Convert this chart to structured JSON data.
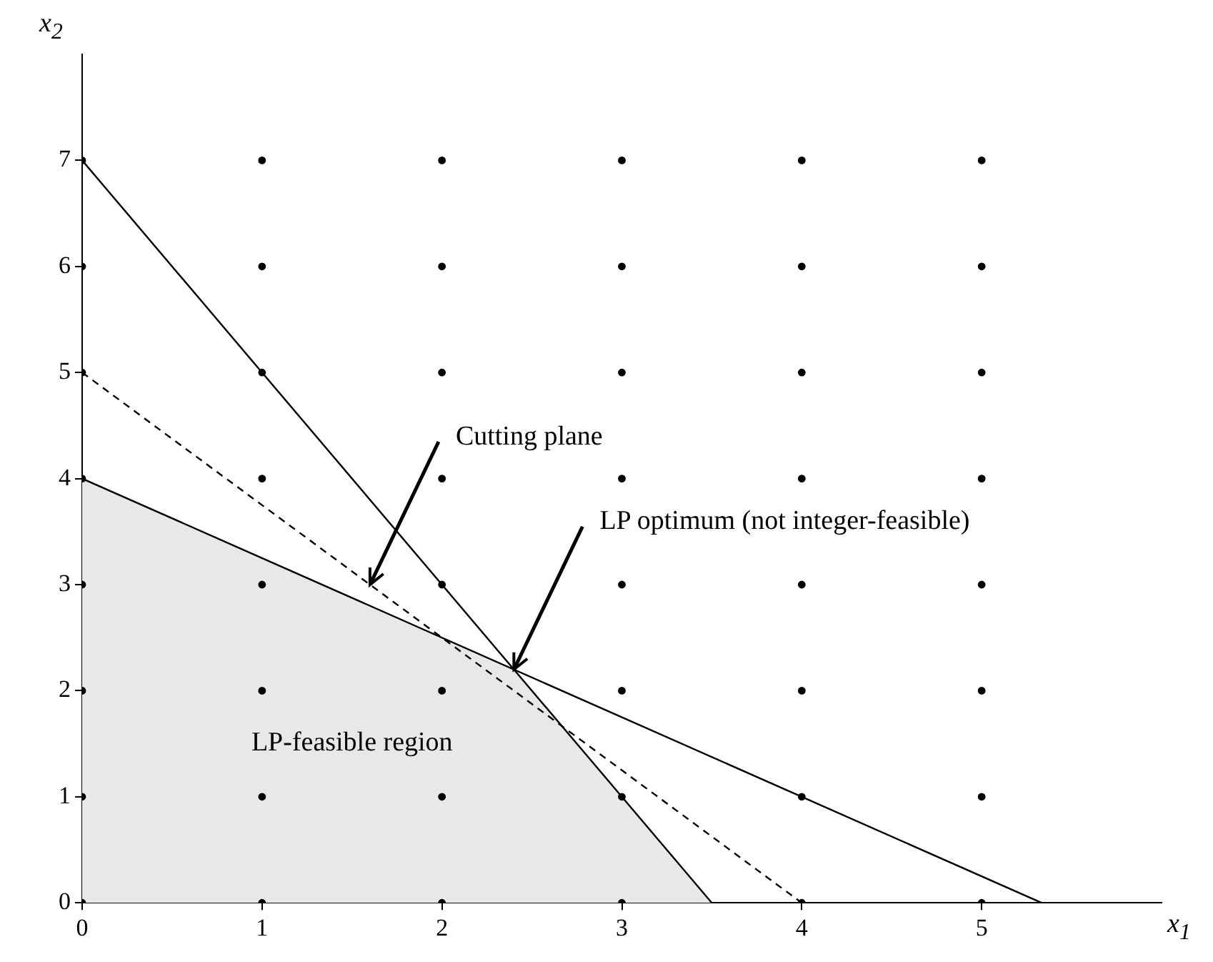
{
  "chart_data": {
    "type": "line",
    "xlabel": "x$_{1}$",
    "ylabel": "x$_{2}$",
    "xlim": [
      0,
      6
    ],
    "ylim": [
      0,
      8
    ],
    "xticks": [
      0,
      1,
      2,
      3,
      4,
      5
    ],
    "yticks": [
      0,
      1,
      2,
      3,
      4,
      5,
      6,
      7
    ],
    "series": [
      {
        "type": "area",
        "color": "#e8e8e8",
        "marker": "none",
        "x": [
          0,
          2.4,
          3.5
        ],
        "values": [
          4,
          2.2,
          0
        ]
      },
      {
        "type": "line",
        "color": "#000000",
        "marker": "none",
        "line_style": "solid",
        "x": [
          0,
          3.5
        ],
        "values": [
          7,
          0
        ]
      },
      {
        "type": "line",
        "color": "#000000",
        "marker": "none",
        "line_style": "solid",
        "x": [
          0,
          5.333
        ],
        "values": [
          4,
          0
        ]
      },
      {
        "type": "line",
        "color": "#000000",
        "marker": "none",
        "line_style": "dashed",
        "x": [
          0,
          4
        ],
        "values": [
          5,
          0
        ]
      },
      {
        "type": "scatter",
        "color": "#000000",
        "marker": "circle",
        "x": [
          0,
          0,
          0,
          0,
          0,
          0,
          0,
          0,
          1,
          1,
          1,
          1,
          1,
          1,
          1,
          1,
          2,
          2,
          2,
          2,
          2,
          2,
          2,
          2,
          3,
          3,
          3,
          3,
          3,
          3,
          3,
          3,
          4,
          4,
          4,
          4,
          4,
          4,
          4,
          4,
          5,
          5,
          5,
          5,
          5,
          5,
          5,
          5
        ],
        "values": [
          0,
          1,
          2,
          3,
          4,
          5,
          6,
          7,
          0,
          1,
          2,
          3,
          4,
          5,
          6,
          7,
          0,
          1,
          2,
          3,
          4,
          5,
          6,
          7,
          0,
          1,
          2,
          3,
          4,
          5,
          6,
          7,
          0,
          1,
          2,
          3,
          4,
          5,
          6,
          7,
          0,
          1,
          2,
          3,
          4,
          5,
          6,
          7
        ]
      }
    ],
    "annotations": [
      {
        "text": "Cutting plane",
        "x": 1.6,
        "y": 3
      },
      {
        "text": "LP optimum (not integer-feasible)",
        "x": 2.4,
        "y": 2.2
      },
      "LP-feasible region"
    ]
  }
}
